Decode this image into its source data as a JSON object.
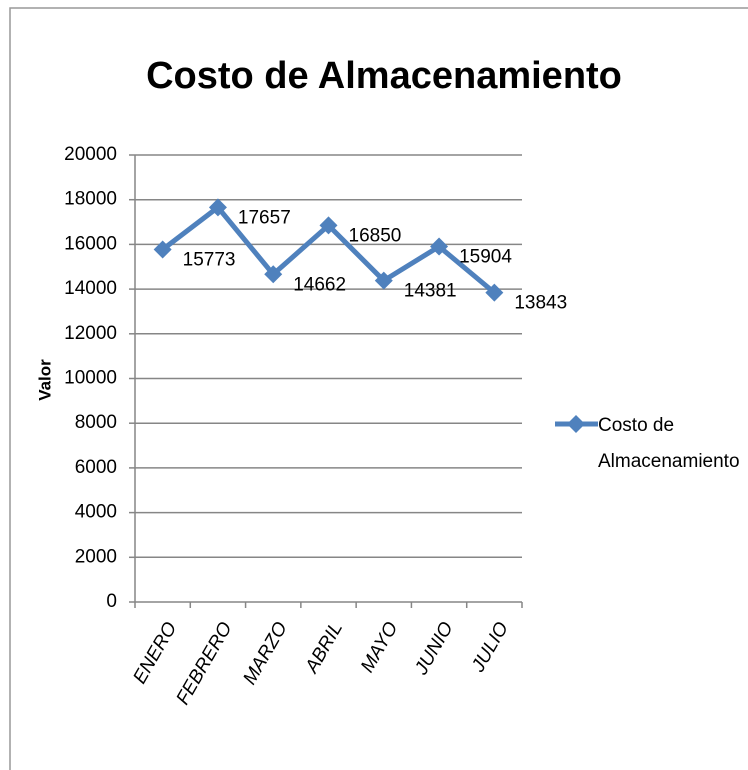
{
  "chart_data": {
    "type": "line",
    "title": "Costo de Almacenamiento",
    "y_label": "Valor",
    "categories": [
      "ENERO",
      "FEBRERO",
      "MARZO",
      "ABRIL",
      "MAYO",
      "JUNIO",
      "JULIO"
    ],
    "series": [
      {
        "name": "Costo de Almacenamiento",
        "color": "#4f81bd",
        "values": [
          15773,
          17657,
          14662,
          16850,
          14381,
          15904,
          13843
        ]
      }
    ],
    "ylim": [
      0,
      20000
    ],
    "yticks": [
      0,
      2000,
      4000,
      6000,
      8000,
      10000,
      12000,
      14000,
      16000,
      18000,
      20000
    ],
    "grid": true,
    "legend": "right"
  }
}
